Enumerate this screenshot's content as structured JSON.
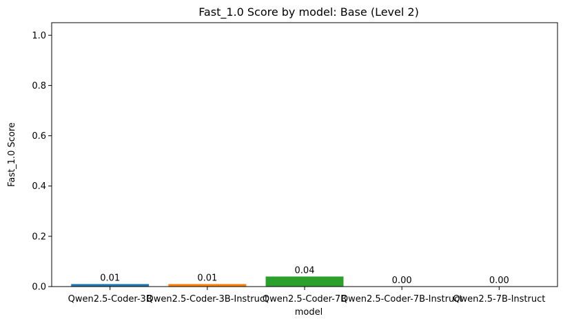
{
  "chart_data": {
    "type": "bar",
    "title": "Fast_1.0 Score by model: Base (Level 2)",
    "xlabel": "model",
    "ylabel": "Fast_1.0 Score",
    "categories": [
      "Qwen2.5-Coder-3B",
      "Qwen2.5-Coder-3B-Instruct",
      "Qwen2.5-Coder-7B",
      "Qwen2.5-Coder-7B-Instruct",
      "Qwen2.5-7B-Instruct"
    ],
    "values": [
      0.01,
      0.01,
      0.04,
      0.0,
      0.0
    ],
    "data_labels": [
      "0.01",
      "0.01",
      "0.04",
      "0.00",
      "0.00"
    ],
    "colors": [
      "#1f77b4",
      "#ff7f0e",
      "#2ca02c",
      "#d62728",
      "#9467bd"
    ],
    "ylim": [
      0,
      1.05
    ],
    "yticks": [
      0.0,
      0.2,
      0.4,
      0.6,
      0.8,
      1.0
    ],
    "ytick_labels": [
      "0.0",
      "0.2",
      "0.4",
      "0.6",
      "0.8",
      "1.0"
    ],
    "grid": false,
    "legend": "none"
  }
}
